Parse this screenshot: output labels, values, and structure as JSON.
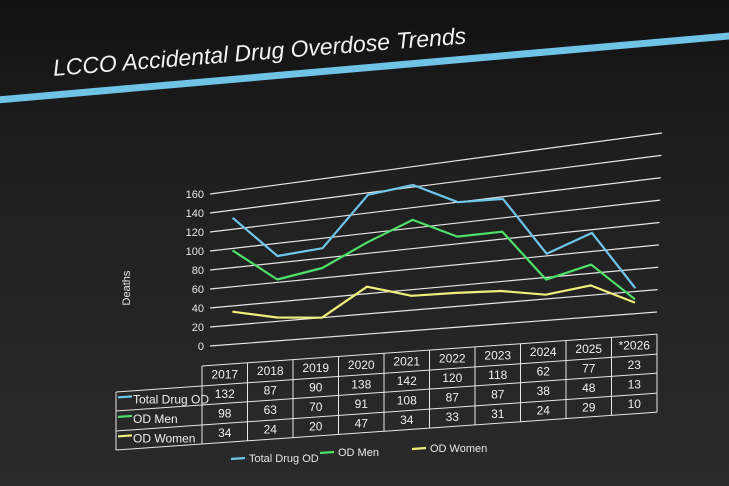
{
  "slide": {
    "title": "LCCO Accidental Drug Overdose Trends"
  },
  "colors": {
    "accent_bar": "#6ec3e6",
    "grid": "#e6e6e6"
  },
  "chart_data": {
    "type": "line",
    "title": "",
    "xlabel": "",
    "ylabel": "Deaths",
    "ylim": [
      0,
      160
    ],
    "yticks": [
      0,
      20,
      40,
      60,
      80,
      100,
      120,
      140,
      160
    ],
    "grid": true,
    "legend": "bottom",
    "data_table": true,
    "categories": [
      "2017",
      "2018",
      "2019",
      "2020",
      "2021",
      "2022",
      "2023",
      "2024",
      "2025",
      "*2026"
    ],
    "series": [
      {
        "name": "Total Drug OD",
        "color": "#6fc6ec",
        "values": [
          132,
          87,
          90,
          138,
          142,
          120,
          118,
          62,
          77,
          23
        ]
      },
      {
        "name": "OD Men",
        "color": "#4fe067",
        "values": [
          98,
          63,
          70,
          91,
          108,
          87,
          87,
          38,
          48,
          13
        ]
      },
      {
        "name": "OD Women",
        "color": "#eef07a",
        "values": [
          34,
          24,
          20,
          47,
          34,
          33,
          31,
          24,
          29,
          10
        ]
      }
    ]
  }
}
